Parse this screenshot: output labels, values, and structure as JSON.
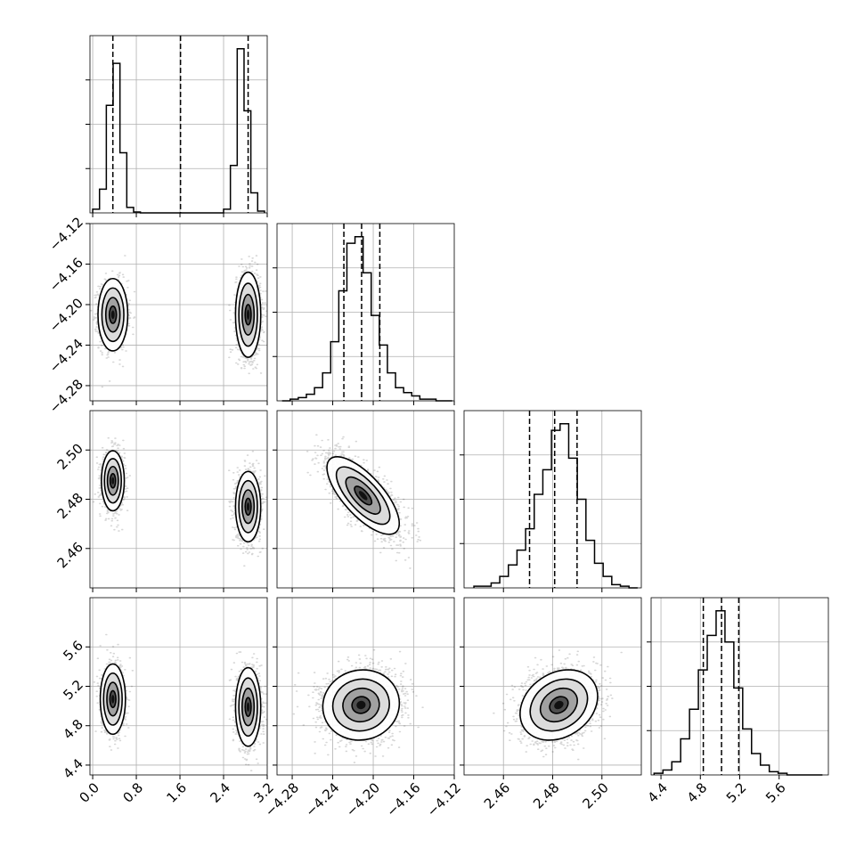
{
  "chart_data": {
    "type": "corner",
    "grid": true,
    "parameters": [
      {
        "range": [
          -0.05,
          3.2
        ],
        "ticks": [
          0.0,
          0.8,
          1.6,
          2.4,
          3.2
        ],
        "tick_labels": [
          "0.0",
          "0.8",
          "1.6",
          "2.4",
          "3.2"
        ],
        "quantiles": [
          0.37,
          1.61,
          2.85
        ]
      },
      {
        "range": [
          -4.295,
          -4.12
        ],
        "ticks": [
          -4.28,
          -4.24,
          -4.2,
          -4.16,
          -4.12
        ],
        "tick_labels": [
          "−4.28",
          "−4.24",
          "−4.20",
          "−4.16",
          "−4.12"
        ],
        "quantiles": [
          -4.229,
          -4.2115,
          -4.1935
        ]
      },
      {
        "range": [
          2.444,
          2.516
        ],
        "ticks": [
          2.46,
          2.48,
          2.5
        ],
        "tick_labels": [
          "2.46",
          "2.48",
          "2.50"
        ],
        "quantiles": [
          2.4706,
          2.4808,
          2.4899
        ]
      },
      {
        "range": [
          4.3,
          6.1
        ],
        "ticks": [
          4.4,
          4.8,
          5.2,
          5.6
        ],
        "tick_labels": [
          "4.4",
          "4.8",
          "5.2",
          "5.6"
        ],
        "quantiles": [
          4.83,
          5.015,
          5.19
        ]
      }
    ],
    "histograms": [
      {
        "edges": [
          0.0,
          0.125,
          0.25,
          0.375,
          0.5,
          0.625,
          0.75,
          0.875,
          2.4,
          2.525,
          2.65,
          2.775,
          2.9,
          3.025,
          3.15
        ],
        "counts": [
          2,
          13,
          59,
          82,
          33,
          3,
          0.5,
          0,
          2,
          26,
          90,
          56,
          11,
          1
        ]
      },
      {
        "edges": [
          -4.29,
          -4.282,
          -4.274,
          -4.266,
          -4.258,
          -4.25,
          -4.242,
          -4.234,
          -4.226,
          -4.218,
          -4.21,
          -4.202,
          -4.194,
          -4.186,
          -4.178,
          -4.17,
          -4.162,
          -4.154,
          -4.146,
          -4.138,
          -4.13,
          -4.122
        ],
        "counts": [
          0,
          1,
          2,
          4,
          8,
          17,
          36,
          67,
          96,
          100,
          78,
          52,
          34,
          17,
          8,
          5,
          3,
          1,
          1,
          0,
          0
        ]
      },
      {
        "edges": [
          2.448,
          2.4515,
          2.455,
          2.4585,
          2.462,
          2.4655,
          2.469,
          2.4725,
          2.476,
          2.4795,
          2.483,
          2.4865,
          2.49,
          2.4935,
          2.497,
          2.5005,
          2.504,
          2.5075,
          2.511,
          2.5145
        ],
        "counts": [
          1,
          1,
          3,
          7,
          14,
          23,
          36,
          57,
          72,
          96,
          100,
          79,
          54,
          29,
          15,
          7,
          2,
          1,
          0
        ]
      },
      {
        "edges": [
          4.33,
          4.42,
          4.51,
          4.6,
          4.69,
          4.78,
          4.87,
          4.96,
          5.05,
          5.14,
          5.23,
          5.32,
          5.41,
          5.5,
          5.59,
          5.68,
          5.77,
          5.86,
          5.95,
          6.04
        ],
        "counts": [
          1,
          3,
          8,
          22,
          40,
          64,
          85,
          100,
          81,
          53,
          28,
          13,
          6,
          2,
          1,
          0,
          0,
          0,
          0
        ]
      }
    ],
    "densities": [
      {
        "x": 1,
        "y": 0,
        "blobs": [
          {
            "cx": 0.37,
            "cy": -4.21,
            "sx": 0.13,
            "sy": 0.017,
            "w": 0.45
          },
          {
            "cx": 2.85,
            "cy": -4.21,
            "sx": 0.11,
            "sy": 0.02,
            "w": 0.55
          }
        ]
      },
      {
        "x": 2,
        "y": 0,
        "blobs": [
          {
            "cx": 0.37,
            "cy": 2.4875,
            "sx": 0.1,
            "sy": 0.0058,
            "w": 0.45
          },
          {
            "cx": 2.85,
            "cy": 2.477,
            "sx": 0.11,
            "sy": 0.0068,
            "w": 0.55
          }
        ]
      },
      {
        "x": 2,
        "y": 1,
        "blobs": [
          {
            "cx": -4.21,
            "cy": 2.4815,
            "sx": 0.017,
            "sy": 0.0075,
            "w": 1,
            "rho": -0.72
          }
        ]
      },
      {
        "x": 3,
        "y": 0,
        "blobs": [
          {
            "cx": 0.37,
            "cy": 5.07,
            "sx": 0.11,
            "sy": 0.17,
            "w": 0.45
          },
          {
            "cx": 2.85,
            "cy": 4.99,
            "sx": 0.11,
            "sy": 0.19,
            "w": 0.55
          }
        ]
      },
      {
        "x": 3,
        "y": 1,
        "blobs": [
          {
            "cx": -4.212,
            "cy": 5.01,
            "sx": 0.018,
            "sy": 0.17,
            "w": 1,
            "rho": 0.05
          }
        ]
      },
      {
        "x": 3,
        "y": 2,
        "blobs": [
          {
            "cx": 2.4825,
            "cy": 5.01,
            "sx": 0.0075,
            "sy": 0.17,
            "w": 1,
            "rho": 0.25
          }
        ]
      }
    ]
  }
}
